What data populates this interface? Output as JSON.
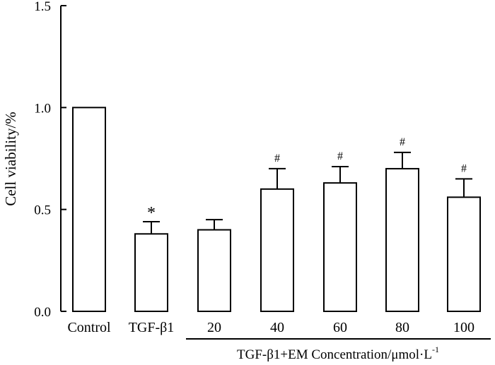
{
  "chart_data": {
    "type": "bar",
    "title": "",
    "xlabel": "",
    "ylabel": "Cell viability/%",
    "ylim": [
      0,
      1.5
    ],
    "yticks": [
      "0.0",
      "0.5",
      "1.0",
      "1.5"
    ],
    "categories": [
      "Control",
      "TGF-β1",
      "20",
      "40",
      "60",
      "80",
      "100"
    ],
    "values": [
      1.0,
      0.38,
      0.4,
      0.6,
      0.63,
      0.7,
      0.56
    ],
    "errors": [
      0,
      0.06,
      0.05,
      0.1,
      0.08,
      0.08,
      0.09
    ],
    "annotations": [
      "",
      "*",
      "",
      "#",
      "#",
      "#",
      "#"
    ],
    "group_label": {
      "text": "TGF-β1+EM Concentration/μmol·L",
      "superscript": "-1",
      "spans_categories": [
        "20",
        "40",
        "60",
        "80",
        "100"
      ]
    }
  }
}
